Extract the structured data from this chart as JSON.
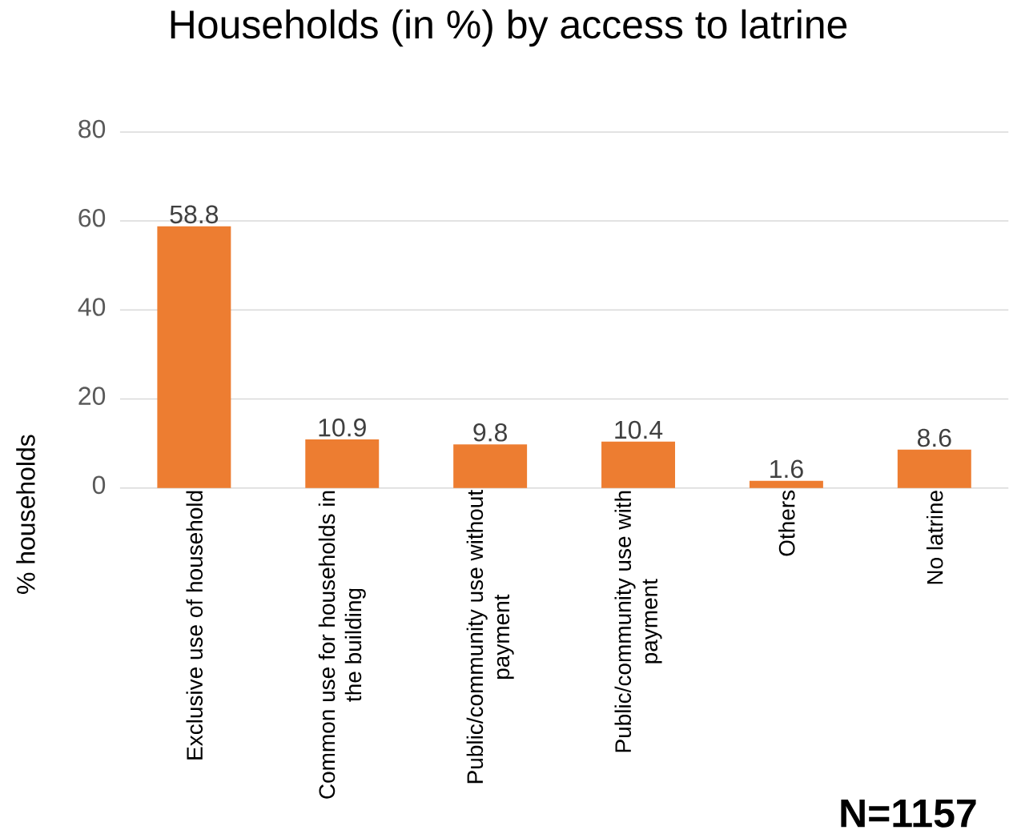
{
  "chart_data": {
    "type": "bar",
    "title": "Households (in %) by access to latrine",
    "ylabel": "% households",
    "categories": [
      "Exclusive use of household",
      "Common use for households in the building",
      "Public/community use without payment",
      "Public/community use with payment",
      "Others",
      "No latrine"
    ],
    "values": [
      58.8,
      10.9,
      9.8,
      10.4,
      1.6,
      8.6
    ],
    "color": "#ed7d31",
    "ylim": [
      0,
      80
    ],
    "yticks": [
      0,
      20,
      40,
      60,
      80
    ],
    "grid": "y",
    "data_labels": true,
    "annotations": [
      "N=1157"
    ]
  }
}
